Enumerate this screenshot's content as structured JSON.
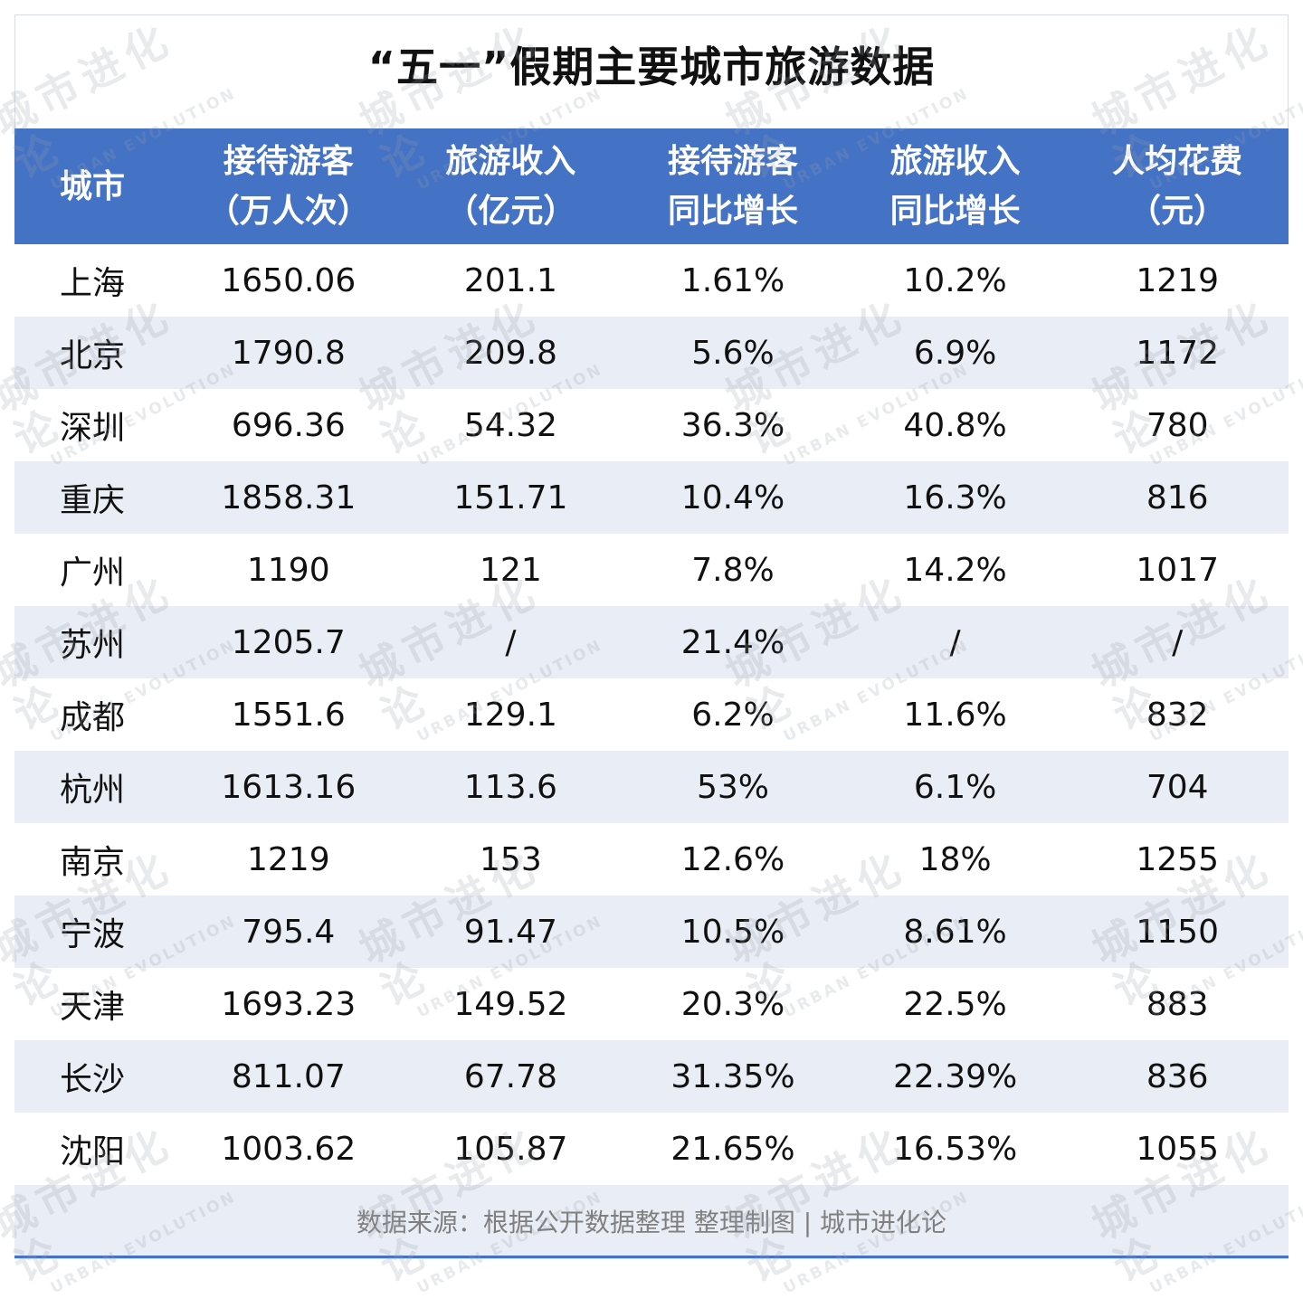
{
  "title": "“五一”假期主要城市旅游数据",
  "colors": {
    "header_bg": "#4472c4",
    "header_text": "#ffffff",
    "row_stripe": "#e9edf5",
    "footer_text": "#7f7f7f"
  },
  "watermark": {
    "cn": "城市进化论",
    "en": "URBAN EVOLUTION"
  },
  "table": {
    "headers": [
      [
        "城市"
      ],
      [
        "接待游客",
        "（万人次）"
      ],
      [
        "旅游收入",
        "（亿元）"
      ],
      [
        "接待游客",
        "同比增长"
      ],
      [
        "旅游收入",
        "同比增长"
      ],
      [
        "人均花费",
        "（元）"
      ]
    ],
    "rows": [
      [
        "上海",
        "1650.06",
        "201.1",
        "1.61%",
        "10.2%",
        "1219"
      ],
      [
        "北京",
        "1790.8",
        "209.8",
        "5.6%",
        "6.9%",
        "1172"
      ],
      [
        "深圳",
        "696.36",
        "54.32",
        "36.3%",
        "40.8%",
        "780"
      ],
      [
        "重庆",
        "1858.31",
        "151.71",
        "10.4%",
        "16.3%",
        "816"
      ],
      [
        "广州",
        "1190",
        "121",
        "7.8%",
        "14.2%",
        "1017"
      ],
      [
        "苏州",
        "1205.7",
        "/",
        "21.4%",
        "/",
        "/"
      ],
      [
        "成都",
        "1551.6",
        "129.1",
        "6.2%",
        "11.6%",
        "832"
      ],
      [
        "杭州",
        "1613.16",
        "113.6",
        "53%",
        "6.1%",
        "704"
      ],
      [
        "南京",
        "1219",
        "153",
        "12.6%",
        "18%",
        "1255"
      ],
      [
        "宁波",
        "795.4",
        "91.47",
        "10.5%",
        "8.61%",
        "1150"
      ],
      [
        "天津",
        "1693.23",
        "149.52",
        "20.3%",
        "22.5%",
        "883"
      ],
      [
        "长沙",
        "811.07",
        "67.78",
        "31.35%",
        "22.39%",
        "836"
      ],
      [
        "沈阳",
        "1003.62",
        "105.87",
        "21.65%",
        "16.53%",
        "1055"
      ]
    ]
  },
  "footer": "数据来源：根据公开数据整理 整理制图 | 城市进化论"
}
